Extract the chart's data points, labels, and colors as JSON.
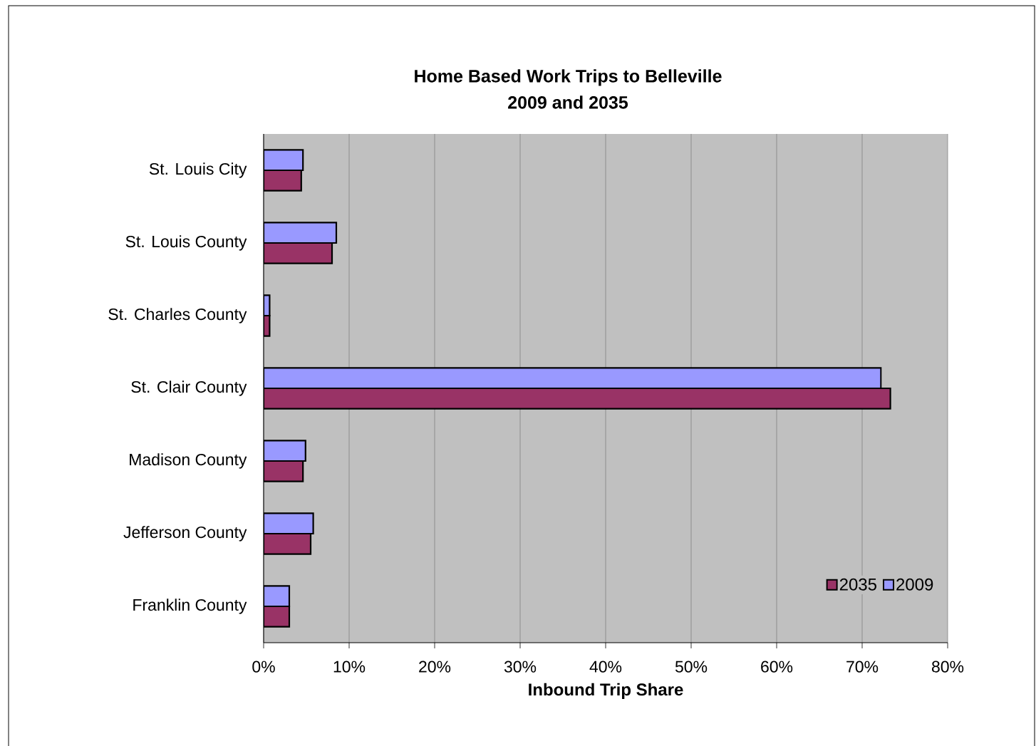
{
  "chart_data": {
    "type": "bar",
    "orientation": "horizontal",
    "title": "Home Based Work Trips to Belleville",
    "subtitle": "2009 and 2035",
    "xlabel": "Inbound Trip Share",
    "categories": [
      "St. Louis City",
      "St. Louis County",
      "St. Charles County",
      "St. Clair County",
      "Madison County",
      "Jefferson County",
      "Franklin County"
    ],
    "series": [
      {
        "name": "2035",
        "color": "#993366",
        "values": [
          4.4,
          8.0,
          0.7,
          73.3,
          4.6,
          5.5,
          3.0
        ]
      },
      {
        "name": "2009",
        "color": "#9999ff",
        "values": [
          4.6,
          8.5,
          0.7,
          72.2,
          4.9,
          5.8,
          3.0
        ]
      }
    ],
    "xlim": [
      0,
      80
    ],
    "xticks": [
      {
        "value": 0,
        "label": "0%"
      },
      {
        "value": 10,
        "label": "10%"
      },
      {
        "value": 20,
        "label": "20%"
      },
      {
        "value": 30,
        "label": "30%"
      },
      {
        "value": 40,
        "label": "40%"
      },
      {
        "value": 50,
        "label": "50%"
      },
      {
        "value": 60,
        "label": "60%"
      },
      {
        "value": 70,
        "label": "70%"
      },
      {
        "value": 80,
        "label": "80%"
      }
    ],
    "grid": "x",
    "legend": "bottom right"
  }
}
